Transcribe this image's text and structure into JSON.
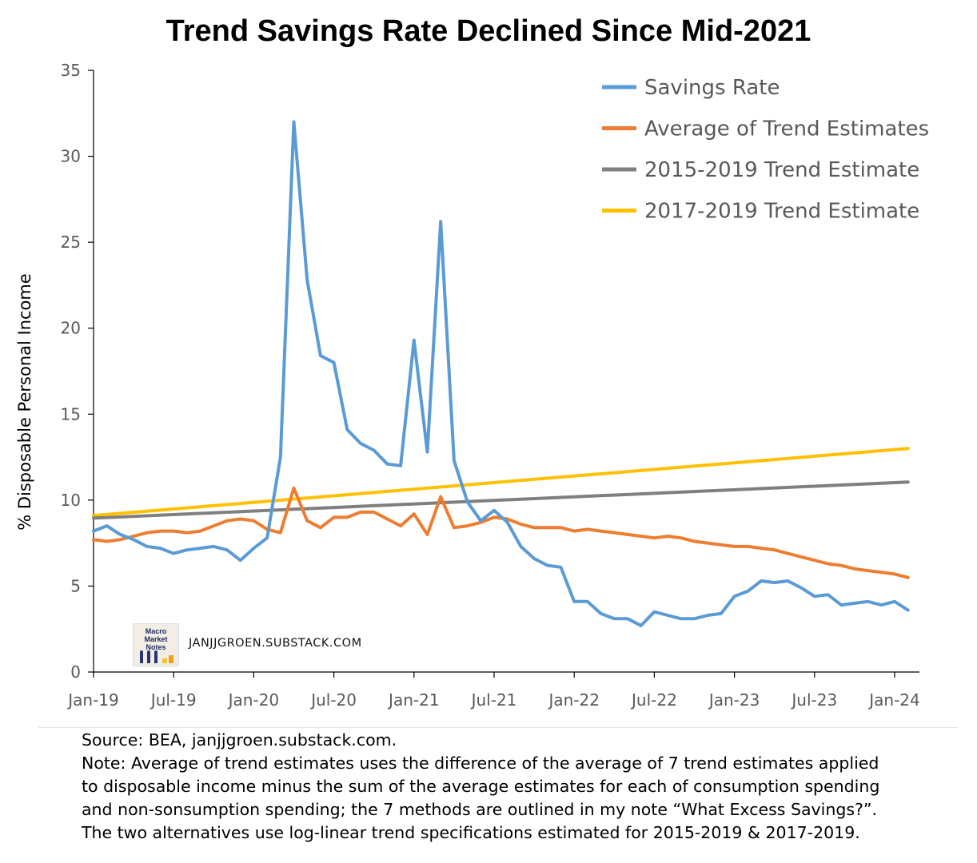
{
  "chart_data": {
    "type": "line",
    "title": "Trend Savings Rate Declined Since Mid-2021",
    "ylabel": "% Disposable Personal Income",
    "xlabel": "",
    "ylim": [
      0,
      35
    ],
    "yticks": [
      0,
      5,
      10,
      15,
      20,
      25,
      30,
      35
    ],
    "xticks": [
      {
        "label": "Jan-19",
        "date": "2019-01"
      },
      {
        "label": "Jul-19",
        "date": "2019-07"
      },
      {
        "label": "Jan-20",
        "date": "2020-01"
      },
      {
        "label": "Jul-20",
        "date": "2020-07"
      },
      {
        "label": "Jan-21",
        "date": "2021-01"
      },
      {
        "label": "Jul-21",
        "date": "2021-07"
      },
      {
        "label": "Jan-22",
        "date": "2022-01"
      },
      {
        "label": "Jul-22",
        "date": "2022-07"
      },
      {
        "label": "Jan-23",
        "date": "2023-01"
      },
      {
        "label": "Jul-23",
        "date": "2023-07"
      },
      {
        "label": "Jan-24",
        "date": "2024-01"
      }
    ],
    "grid": false,
    "legend_position": "top-right",
    "x": [
      "2019-01",
      "2019-02",
      "2019-03",
      "2019-04",
      "2019-05",
      "2019-06",
      "2019-07",
      "2019-08",
      "2019-09",
      "2019-10",
      "2019-11",
      "2019-12",
      "2020-01",
      "2020-02",
      "2020-03",
      "2020-04",
      "2020-05",
      "2020-06",
      "2020-07",
      "2020-08",
      "2020-09",
      "2020-10",
      "2020-11",
      "2020-12",
      "2021-01",
      "2021-02",
      "2021-03",
      "2021-04",
      "2021-05",
      "2021-06",
      "2021-07",
      "2021-08",
      "2021-09",
      "2021-10",
      "2021-11",
      "2021-12",
      "2022-01",
      "2022-02",
      "2022-03",
      "2022-04",
      "2022-05",
      "2022-06",
      "2022-07",
      "2022-08",
      "2022-09",
      "2022-10",
      "2022-11",
      "2022-12",
      "2023-01",
      "2023-02",
      "2023-03",
      "2023-04",
      "2023-05",
      "2023-06",
      "2023-07",
      "2023-08",
      "2023-09",
      "2023-10",
      "2023-11",
      "2023-12",
      "2024-01",
      "2024-02"
    ],
    "series": [
      {
        "name": "Savings Rate",
        "color": "#5b9bd5",
        "values": [
          8.2,
          8.5,
          8.0,
          7.7,
          7.3,
          7.2,
          6.9,
          7.1,
          7.2,
          7.3,
          7.1,
          6.5,
          7.2,
          7.8,
          12.5,
          32.0,
          22.8,
          18.4,
          18.0,
          14.1,
          13.3,
          12.9,
          12.1,
          12.0,
          19.3,
          12.8,
          26.2,
          12.3,
          9.9,
          8.8,
          9.4,
          8.7,
          7.3,
          6.6,
          6.2,
          6.1,
          4.1,
          4.1,
          3.4,
          3.1,
          3.1,
          2.7,
          3.5,
          3.3,
          3.1,
          3.1,
          3.3,
          3.4,
          4.4,
          4.7,
          5.3,
          5.2,
          5.3,
          4.9,
          4.4,
          4.5,
          3.9,
          4.0,
          4.1,
          3.9,
          4.1,
          3.6
        ]
      },
      {
        "name": "Average of Trend Estimates",
        "color": "#ed7d31",
        "values": [
          7.7,
          7.6,
          7.7,
          7.9,
          8.1,
          8.2,
          8.2,
          8.1,
          8.2,
          8.5,
          8.8,
          8.9,
          8.8,
          8.3,
          8.1,
          10.7,
          8.8,
          8.4,
          9.0,
          9.0,
          9.3,
          9.3,
          8.9,
          8.5,
          9.2,
          8.0,
          10.2,
          8.4,
          8.5,
          8.7,
          9.0,
          8.9,
          8.6,
          8.4,
          8.4,
          8.4,
          8.2,
          8.3,
          8.2,
          8.1,
          8.0,
          7.9,
          7.8,
          7.9,
          7.8,
          7.6,
          7.5,
          7.4,
          7.3,
          7.3,
          7.2,
          7.1,
          6.9,
          6.7,
          6.5,
          6.3,
          6.2,
          6.0,
          5.9,
          5.8,
          5.7,
          5.5
        ]
      },
      {
        "name": "2015-2019 Trend Estimate",
        "color": "#7f7f7f",
        "values_linear": {
          "start": 8.95,
          "end": 11.05
        }
      },
      {
        "name": "2017-2019 Trend Estimate",
        "color": "#ffc000",
        "values_linear": {
          "start": 9.1,
          "end": 13.0
        }
      }
    ]
  },
  "watermark": {
    "logo_text": "Macro Market Notes",
    "site": "JANJJGROEN.SUBSTACK.COM"
  },
  "notes": {
    "source": "Source: BEA, janjjgroen.substack.com.",
    "line1": "Note: Average of trend estimates uses the difference of the average of 7 trend estimates applied",
    "line2": "to disposable income minus the sum of the average estimates for each of consumption spending",
    "line3": "and non-sonsumption spending; the 7 methods are outlined in my note “What Excess Savings?”.",
    "line4": "The two alternatives use log-linear trend specifications estimated for 2015-2019 & 2017-2019."
  }
}
